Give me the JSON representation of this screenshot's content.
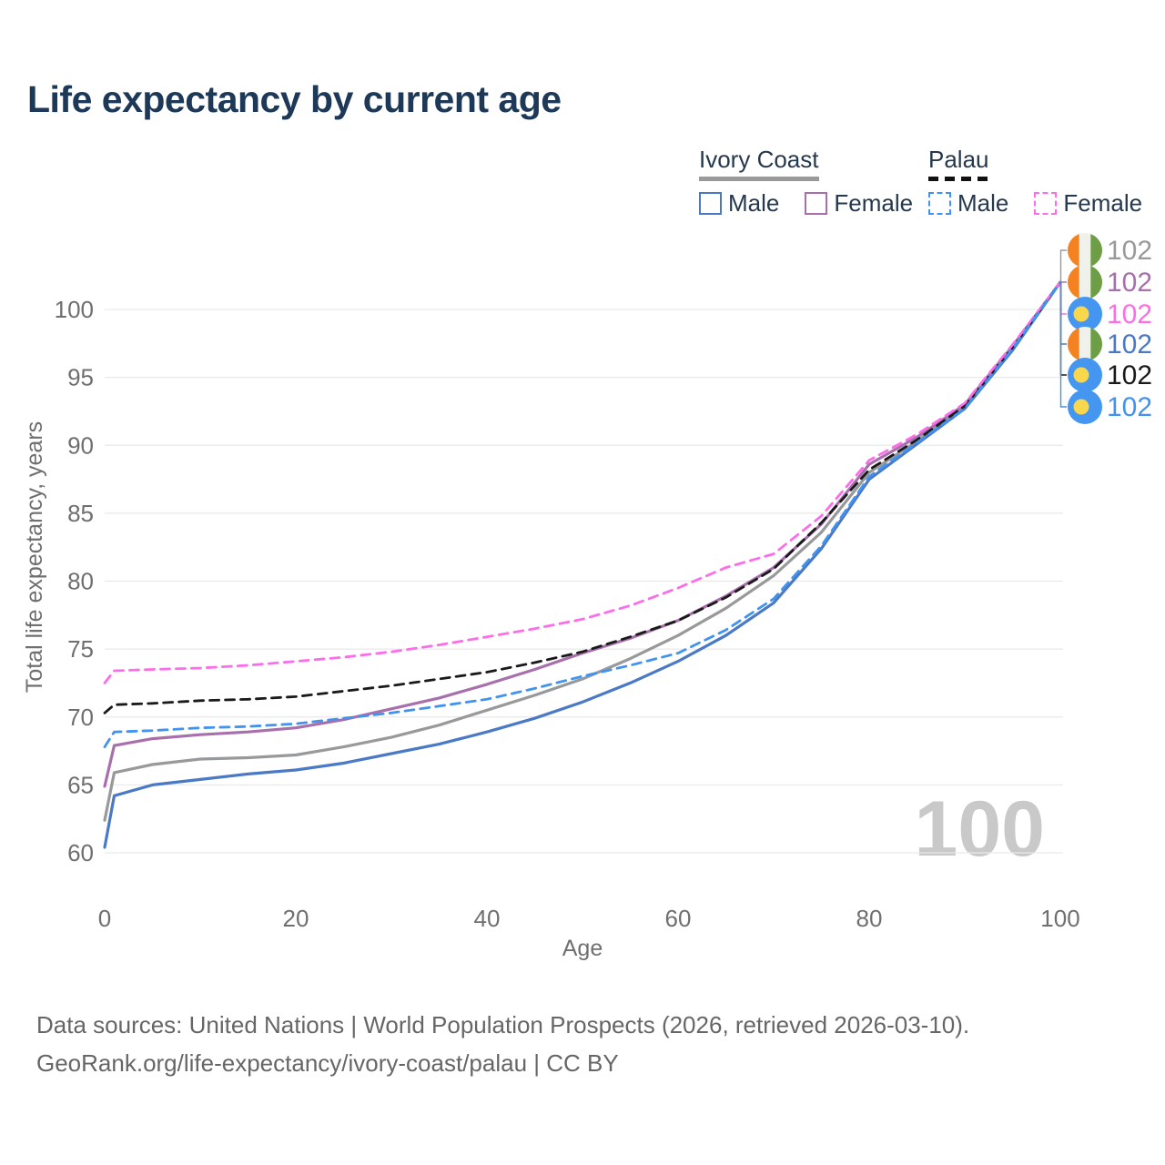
{
  "title": "Life expectancy by current age",
  "legend": {
    "groups": [
      {
        "label": "Ivory Coast",
        "line_style": "solid",
        "items": [
          {
            "label": "Male",
            "color": "#4a79c5",
            "swatch_style": "solid"
          },
          {
            "label": "Female",
            "color": "#a770ad",
            "swatch_style": "solid"
          }
        ]
      },
      {
        "label": "Palau",
        "line_style": "dashed",
        "items": [
          {
            "label": "Male",
            "color": "#4193f0",
            "swatch_style": "dashed"
          },
          {
            "label": "Female",
            "color": "#fc6ee9",
            "swatch_style": "dashed"
          }
        ]
      }
    ]
  },
  "chart_data": {
    "type": "line",
    "title": "Life expectancy by current age",
    "xlabel": "Age",
    "ylabel": "Total life expectancy, years",
    "xlim": [
      0,
      100
    ],
    "ylim": [
      60,
      100
    ],
    "xticks": [
      0,
      20,
      40,
      60,
      80,
      100
    ],
    "yticks": [
      60,
      65,
      70,
      75,
      80,
      85,
      90,
      95,
      100
    ],
    "grid": "horizontal",
    "legend_position": "top-right",
    "age_counter": "100",
    "x": [
      0,
      1,
      5,
      10,
      15,
      20,
      25,
      30,
      35,
      40,
      45,
      50,
      55,
      60,
      65,
      70,
      75,
      80,
      85,
      90,
      95,
      100
    ],
    "series": [
      {
        "name": "Ivory Coast (both)",
        "country": "Ivory Coast",
        "sex": "both",
        "color": "#98999b",
        "dash": false,
        "values": [
          62.4,
          65.9,
          66.5,
          66.9,
          67.0,
          67.2,
          67.8,
          68.5,
          69.4,
          70.5,
          71.6,
          72.8,
          74.3,
          76.0,
          78.0,
          80.4,
          83.6,
          88.0,
          90.3,
          92.9,
          97.2,
          102
        ]
      },
      {
        "name": "Ivory Coast Female",
        "country": "Ivory Coast",
        "sex": "female",
        "color": "#a770ad",
        "dash": false,
        "values": [
          64.9,
          67.9,
          68.4,
          68.7,
          68.9,
          69.2,
          69.8,
          70.6,
          71.4,
          72.4,
          73.5,
          74.7,
          75.8,
          77.1,
          78.9,
          81.0,
          84.2,
          88.6,
          90.6,
          93.0,
          97.3,
          102
        ]
      },
      {
        "name": "Ivory Coast Male",
        "country": "Ivory Coast",
        "sex": "male",
        "color": "#4a79c5",
        "dash": false,
        "values": [
          60.4,
          64.2,
          65.0,
          65.4,
          65.8,
          66.1,
          66.6,
          67.3,
          68.0,
          68.9,
          69.9,
          71.1,
          72.5,
          74.1,
          76.0,
          78.4,
          82.4,
          87.5,
          90.1,
          92.7,
          97.0,
          102
        ]
      },
      {
        "name": "Palau (both)",
        "country": "Palau",
        "sex": "both",
        "color": "#1a1a1a",
        "dash": true,
        "values": [
          70.3,
          70.9,
          71.0,
          71.2,
          71.3,
          71.5,
          71.9,
          72.3,
          72.8,
          73.3,
          74.0,
          74.8,
          75.9,
          77.1,
          78.8,
          80.9,
          84.3,
          88.2,
          90.4,
          92.9,
          97.2,
          102
        ]
      },
      {
        "name": "Palau Female",
        "country": "Palau",
        "sex": "female",
        "color": "#fc6ee9",
        "dash": true,
        "values": [
          72.5,
          73.4,
          73.5,
          73.6,
          73.8,
          74.1,
          74.4,
          74.8,
          75.3,
          75.9,
          76.5,
          77.2,
          78.2,
          79.5,
          81.0,
          82.0,
          84.8,
          88.9,
          90.8,
          93.1,
          97.4,
          102
        ]
      },
      {
        "name": "Palau Male",
        "country": "Palau",
        "sex": "male",
        "color": "#4193f0",
        "dash": true,
        "values": [
          67.8,
          68.9,
          69.0,
          69.2,
          69.3,
          69.5,
          69.9,
          70.3,
          70.8,
          71.3,
          72.1,
          73.0,
          73.8,
          74.7,
          76.4,
          78.7,
          82.6,
          87.7,
          90.2,
          92.7,
          97.1,
          102
        ]
      }
    ],
    "end_labels": [
      {
        "value": "102",
        "color": "#98999b",
        "flag": "ivory-coast",
        "series": "Ivory Coast (both)"
      },
      {
        "value": "102",
        "color": "#a770ad",
        "flag": "ivory-coast",
        "series": "Ivory Coast Female"
      },
      {
        "value": "102",
        "color": "#fc6ee9",
        "flag": "palau",
        "series": "Palau Female"
      },
      {
        "value": "102",
        "color": "#4a79c5",
        "flag": "ivory-coast",
        "series": "Ivory Coast Male"
      },
      {
        "value": "102",
        "color": "#1a1a1a",
        "flag": "palau",
        "series": "Palau (both)"
      },
      {
        "value": "102",
        "color": "#4193f0",
        "flag": "palau",
        "series": "Palau Male"
      }
    ]
  },
  "footer": {
    "line1": "Data sources: United Nations | World Population Prospects (2026, retrieved 2026-03-10).",
    "line2": "GeoRank.org/life-expectancy/ivory-coast/palau | CC BY"
  }
}
